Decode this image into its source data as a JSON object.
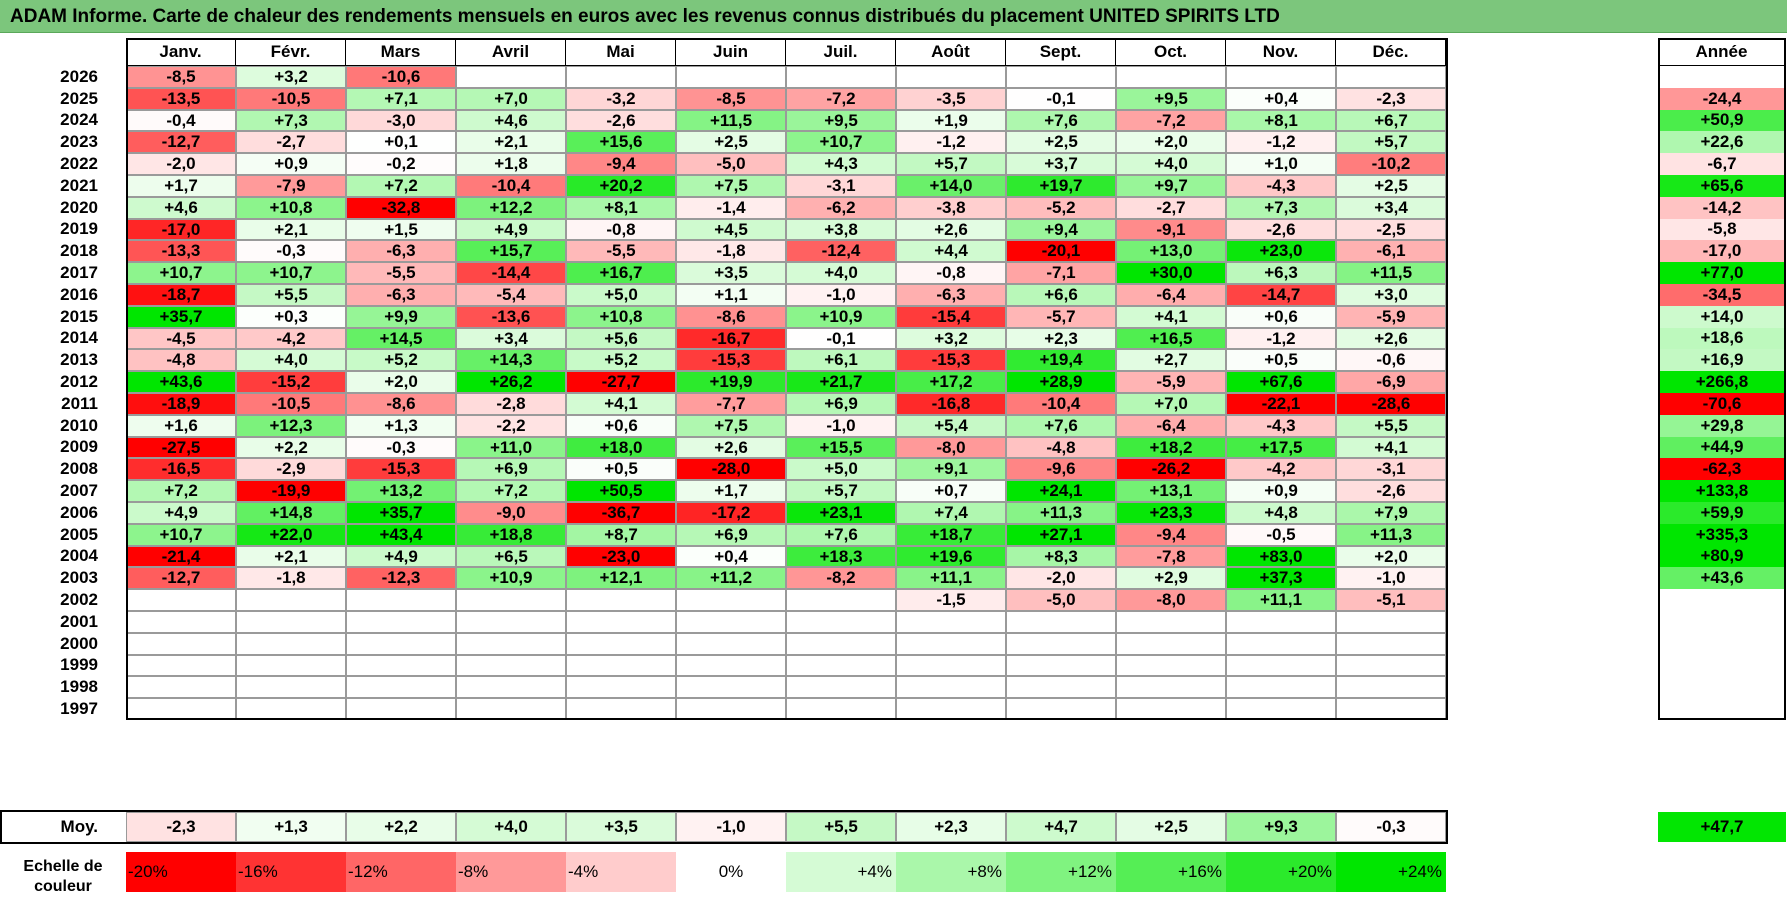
{
  "title": "ADAM Informe. Carte de chaleur des rendements mensuels en euros avec les revenus connus distribués du placement UNITED SPIRITS LTD",
  "colors": {
    "title_bg": "#7cc67c",
    "negative": "#ff0000",
    "positive": "#00e600",
    "neutral": "#ffffff"
  },
  "chart_data": {
    "type": "heatmap",
    "title": "ADAM Informe. Carte de chaleur des rendements mensuels en euros avec les revenus connus distribués du placement UNITED SPIRITS LTD",
    "columns": [
      "Janv.",
      "Févr.",
      "Mars",
      "Avril",
      "Mai",
      "Juin",
      "Juil.",
      "Août",
      "Sept.",
      "Oct.",
      "Nov.",
      "Déc."
    ],
    "year_header": "Année",
    "rows": [
      {
        "year": "2026",
        "months": [
          "-8,5",
          "+3,2",
          "-10,6",
          "",
          "",
          "",
          "",
          "",
          "",
          "",
          "",
          ""
        ],
        "annual": ""
      },
      {
        "year": "2025",
        "months": [
          "-13,5",
          "-10,5",
          "+7,1",
          "+7,0",
          "-3,2",
          "-8,5",
          "-7,2",
          "-3,5",
          "-0,1",
          "+9,5",
          "+0,4",
          "-2,3"
        ],
        "annual": "-24,4"
      },
      {
        "year": "2024",
        "months": [
          "-0,4",
          "+7,3",
          "-3,0",
          "+4,6",
          "-2,6",
          "+11,5",
          "+9,5",
          "+1,9",
          "+7,6",
          "-7,2",
          "+8,1",
          "+6,7"
        ],
        "annual": "+50,9"
      },
      {
        "year": "2023",
        "months": [
          "-12,7",
          "-2,7",
          "+0,1",
          "+2,1",
          "+15,6",
          "+2,5",
          "+10,7",
          "-1,2",
          "+2,5",
          "+2,0",
          "-1,2",
          "+5,7"
        ],
        "annual": "+22,6"
      },
      {
        "year": "2022",
        "months": [
          "-2,0",
          "+0,9",
          "-0,2",
          "+1,8",
          "-9,4",
          "-5,0",
          "+4,3",
          "+5,7",
          "+3,7",
          "+4,0",
          "+1,0",
          "-10,2"
        ],
        "annual": "-6,7"
      },
      {
        "year": "2021",
        "months": [
          "+1,7",
          "-7,9",
          "+7,2",
          "-10,4",
          "+20,2",
          "+7,5",
          "-3,1",
          "+14,0",
          "+19,7",
          "+9,7",
          "-4,3",
          "+2,5"
        ],
        "annual": "+65,6"
      },
      {
        "year": "2020",
        "months": [
          "+4,6",
          "+10,8",
          "-32,8",
          "+12,2",
          "+8,1",
          "-1,4",
          "-6,2",
          "-3,8",
          "-5,2",
          "-2,7",
          "+7,3",
          "+3,4"
        ],
        "annual": "-14,2"
      },
      {
        "year": "2019",
        "months": [
          "-17,0",
          "+2,1",
          "+1,5",
          "+4,9",
          "-0,8",
          "+4,5",
          "+3,8",
          "+2,6",
          "+9,4",
          "-9,1",
          "-2,6",
          "-2,5"
        ],
        "annual": "-5,8"
      },
      {
        "year": "2018",
        "months": [
          "-13,3",
          "-0,3",
          "-6,3",
          "+15,7",
          "-5,5",
          "-1,8",
          "-12,4",
          "+4,4",
          "-20,1",
          "+13,0",
          "+23,0",
          "-6,1"
        ],
        "annual": "-17,0"
      },
      {
        "year": "2017",
        "months": [
          "+10,7",
          "+10,7",
          "-5,5",
          "-14,4",
          "+16,7",
          "+3,5",
          "+4,0",
          "-0,8",
          "-7,1",
          "+30,0",
          "+6,3",
          "+11,5"
        ],
        "annual": "+77,0"
      },
      {
        "year": "2016",
        "months": [
          "-18,7",
          "+5,5",
          "-6,3",
          "-5,4",
          "+5,0",
          "+1,1",
          "-1,0",
          "-6,3",
          "+6,6",
          "-6,4",
          "-14,7",
          "+3,0"
        ],
        "annual": "-34,5"
      },
      {
        "year": "2015",
        "months": [
          "+35,7",
          "+0,3",
          "+9,9",
          "-13,6",
          "+10,8",
          "-8,6",
          "+10,9",
          "-15,4",
          "-5,7",
          "+4,1",
          "+0,6",
          "-5,9"
        ],
        "annual": "+14,0"
      },
      {
        "year": "2014",
        "months": [
          "-4,5",
          "-4,2",
          "+14,5",
          "+3,4",
          "+5,6",
          "-16,7",
          "-0,1",
          "+3,2",
          "+2,3",
          "+16,5",
          "-1,2",
          "+2,6"
        ],
        "annual": "+18,6"
      },
      {
        "year": "2013",
        "months": [
          "-4,8",
          "+4,0",
          "+5,2",
          "+14,3",
          "+5,2",
          "-15,3",
          "+6,1",
          "-15,3",
          "+19,4",
          "+2,7",
          "+0,5",
          "-0,6"
        ],
        "annual": "+16,9"
      },
      {
        "year": "2012",
        "months": [
          "+43,6",
          "-15,2",
          "+2,0",
          "+26,2",
          "-27,7",
          "+19,9",
          "+21,7",
          "+17,2",
          "+28,9",
          "-5,9",
          "+67,6",
          "-6,9"
        ],
        "annual": "+266,8"
      },
      {
        "year": "2011",
        "months": [
          "-18,9",
          "-10,5",
          "-8,6",
          "-2,8",
          "+4,1",
          "-7,7",
          "+6,9",
          "-16,8",
          "-10,4",
          "+7,0",
          "-22,1",
          "-28,6"
        ],
        "annual": "-70,6"
      },
      {
        "year": "2010",
        "months": [
          "+1,6",
          "+12,3",
          "+1,3",
          "-2,2",
          "+0,6",
          "+7,5",
          "-1,0",
          "+5,4",
          "+7,6",
          "-6,4",
          "-4,3",
          "+5,5"
        ],
        "annual": "+29,8"
      },
      {
        "year": "2009",
        "months": [
          "-27,5",
          "+2,2",
          "-0,3",
          "+11,0",
          "+18,0",
          "+2,6",
          "+15,5",
          "-8,0",
          "-4,8",
          "+18,2",
          "+17,5",
          "+4,1"
        ],
        "annual": "+44,9"
      },
      {
        "year": "2008",
        "months": [
          "-16,5",
          "-2,9",
          "-15,3",
          "+6,9",
          "+0,5",
          "-28,0",
          "+5,0",
          "+9,1",
          "-9,6",
          "-26,2",
          "-4,2",
          "-3,1"
        ],
        "annual": "-62,3"
      },
      {
        "year": "2007",
        "months": [
          "+7,2",
          "-19,9",
          "+13,2",
          "+7,2",
          "+50,5",
          "+1,7",
          "+5,7",
          "+0,7",
          "+24,1",
          "+13,1",
          "+0,9",
          "-2,6"
        ],
        "annual": "+133,8"
      },
      {
        "year": "2006",
        "months": [
          "+4,9",
          "+14,8",
          "+35,7",
          "-9,0",
          "-36,7",
          "-17,2",
          "+23,1",
          "+7,4",
          "+11,3",
          "+23,3",
          "+4,8",
          "+7,9"
        ],
        "annual": "+59,9"
      },
      {
        "year": "2005",
        "months": [
          "+10,7",
          "+22,0",
          "+43,4",
          "+18,8",
          "+8,7",
          "+6,9",
          "+7,6",
          "+18,7",
          "+27,1",
          "-9,4",
          "-0,5",
          "+11,3"
        ],
        "annual": "+335,3"
      },
      {
        "year": "2004",
        "months": [
          "-21,4",
          "+2,1",
          "+4,9",
          "+6,5",
          "-23,0",
          "+0,4",
          "+18,3",
          "+19,6",
          "+8,3",
          "-7,8",
          "+83,0",
          "+2,0"
        ],
        "annual": "+80,9"
      },
      {
        "year": "2003",
        "months": [
          "-12,7",
          "-1,8",
          "-12,3",
          "+10,9",
          "+12,1",
          "+11,2",
          "-8,2",
          "+11,1",
          "-2,0",
          "+2,9",
          "+37,3",
          "-1,0"
        ],
        "annual": "+43,6"
      },
      {
        "year": "2002",
        "months": [
          "",
          "",
          "",
          "",
          "",
          "",
          "",
          "-1,5",
          "-5,0",
          "-8,0",
          "+11,1",
          "-5,1"
        ],
        "annual": ""
      },
      {
        "year": "2001",
        "months": [
          "",
          "",
          "",
          "",
          "",
          "",
          "",
          "",
          "",
          "",
          "",
          ""
        ],
        "annual": ""
      },
      {
        "year": "2000",
        "months": [
          "",
          "",
          "",
          "",
          "",
          "",
          "",
          "",
          "",
          "",
          "",
          ""
        ],
        "annual": ""
      },
      {
        "year": "1999",
        "months": [
          "",
          "",
          "",
          "",
          "",
          "",
          "",
          "",
          "",
          "",
          "",
          ""
        ],
        "annual": ""
      },
      {
        "year": "1998",
        "months": [
          "",
          "",
          "",
          "",
          "",
          "",
          "",
          "",
          "",
          "",
          "",
          ""
        ],
        "annual": ""
      },
      {
        "year": "1997",
        "months": [
          "",
          "",
          "",
          "",
          "",
          "",
          "",
          "",
          "",
          "",
          "",
          ""
        ],
        "annual": ""
      }
    ],
    "average": {
      "label": "Moy.",
      "months": [
        "-2,3",
        "+1,3",
        "+2,2",
        "+4,0",
        "+3,5",
        "-1,0",
        "+5,5",
        "+2,3",
        "+4,7",
        "+2,5",
        "+9,3",
        "-0,3"
      ],
      "annual": "+47,7"
    },
    "scale": {
      "label_line1": "Echelle de",
      "label_line2": "couleur",
      "steps": [
        "-20%",
        "-16%",
        "-12%",
        "-8%",
        "-4%",
        "0%",
        "+4%",
        "+8%",
        "+12%",
        "+16%",
        "+20%",
        "+24%"
      ]
    }
  }
}
